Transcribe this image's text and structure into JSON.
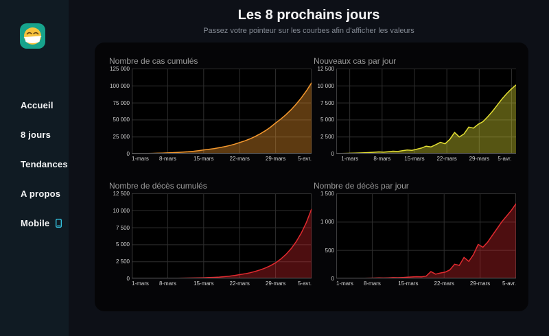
{
  "sidebar": {
    "logo": {
      "name": "face-with-mask-logo",
      "bg": "#17a38c"
    },
    "items": [
      {
        "id": "accueil",
        "label": "Accueil"
      },
      {
        "id": "8-jours",
        "label": "8 jours"
      },
      {
        "id": "tendances",
        "label": "Tendances"
      },
      {
        "id": "a-propos",
        "label": "A propos"
      },
      {
        "id": "mobile",
        "label": "Mobile",
        "icon": "phone-icon"
      }
    ]
  },
  "header": {
    "title": "Les 8 prochains jours",
    "subtitle": "Passez votre pointeur sur les courbes afin d'afficher les valeurs"
  },
  "colors": {
    "page_bg": "#0d1017",
    "sidebar_bg": "#101b23",
    "card_bg": "#050507",
    "grid": "#2f2f2f",
    "axis_x": "#6e6e6e",
    "axis_y": "#3c3c3c",
    "cases_accent": "#f5992e",
    "new_cases_accent": "#e3df33",
    "deaths_accent": "#e22a2f",
    "nav_icon_accent": "#35c3e0"
  },
  "chart_data": [
    {
      "type": "area",
      "title": "Nombre de cas cumulés",
      "color": "#f5992e",
      "fill_opacity": 0.38,
      "ymax": 125000,
      "ylim": [
        0,
        125000
      ],
      "y_ticks": [
        {
          "label": "125 000",
          "value": 125000
        },
        {
          "label": "100 000",
          "value": 100000
        },
        {
          "label": "75 000",
          "value": 75000
        },
        {
          "label": "50 000",
          "value": 50000
        },
        {
          "label": "25 000",
          "value": 25000
        },
        {
          "label": "0",
          "value": 0
        }
      ],
      "x_labels": [
        "1-mars",
        "8-mars",
        "15-mars",
        "22-mars",
        "29-mars",
        "5-avr."
      ],
      "x_positions": [
        0.0,
        0.2,
        0.4,
        0.6,
        0.8,
        1.0
      ],
      "values": [
        130,
        177,
        241,
        327,
        445,
        606,
        824,
        1130,
        1413,
        1766,
        2208,
        2760,
        3450,
        4313,
        5400,
        6318,
        7392,
        8649,
        10119,
        11839,
        13852,
        16200,
        18742,
        21683,
        25085,
        29021,
        33575,
        38843,
        45000,
        50715,
        57156,
        64415,
        72596,
        81816,
        92207,
        104000
      ]
    },
    {
      "type": "area",
      "title": "Nouveaux cas par jour",
      "color": "#e3df33",
      "fill_opacity": 0.38,
      "ymax": 12500,
      "ylim": [
        0,
        12500
      ],
      "y_ticks": [
        {
          "label": "12 500",
          "value": 12500
        },
        {
          "label": "10 000",
          "value": 10000
        },
        {
          "label": "7 500",
          "value": 7500
        },
        {
          "label": "5 000",
          "value": 5000
        },
        {
          "label": "2 500",
          "value": 2500
        },
        {
          "label": "0",
          "value": 0
        }
      ],
      "x_labels": [
        "1-mars",
        "8-mars",
        "15-mars",
        "22-mars",
        "29-mars",
        "5-avr."
      ],
      "x_positions": [
        0.075,
        0.255,
        0.435,
        0.615,
        0.795,
        0.975
      ],
      "values": [
        20,
        30,
        45,
        60,
        80,
        100,
        130,
        165,
        205,
        250,
        210,
        280,
        350,
        310,
        420,
        530,
        480,
        650,
        820,
        1100,
        980,
        1300,
        1650,
        1450,
        2100,
        3100,
        2450,
        2900,
        3900,
        3750,
        4300,
        4700,
        5400,
        6200,
        7100,
        8000,
        8800,
        9500,
        10100
      ]
    },
    {
      "type": "area",
      "title": "Nombre de décès cumulés",
      "color": "#e22a2f",
      "fill_opacity": 0.34,
      "ymax": 12500,
      "ylim": [
        0,
        12500
      ],
      "y_ticks": [
        {
          "label": "12 500",
          "value": 12500
        },
        {
          "label": "10 000",
          "value": 10000
        },
        {
          "label": "7 500",
          "value": 7500
        },
        {
          "label": "5 000",
          "value": 5000
        },
        {
          "label": "2 500",
          "value": 2500
        },
        {
          "label": "0",
          "value": 0
        }
      ],
      "x_labels": [
        "1-mars",
        "8-mars",
        "15-mars",
        "22-mars",
        "29-mars",
        "5-avr."
      ],
      "x_positions": [
        0.0,
        0.2,
        0.4,
        0.6,
        0.8,
        1.0
      ],
      "values": [
        5,
        6,
        8,
        9,
        11,
        14,
        17,
        20,
        25,
        31,
        38,
        47,
        59,
        73,
        90,
        116,
        151,
        195,
        252,
        327,
        423,
        550,
        675,
        828,
        1016,
        1246,
        1529,
        1875,
        2300,
        2845,
        3519,
        4353,
        5385,
        6661,
        8240,
        10200
      ]
    },
    {
      "type": "area",
      "title": "Nombre de décès par jour",
      "color": "#e22a2f",
      "fill_opacity": 0.34,
      "ymax": 1500,
      "ylim": [
        0,
        1500
      ],
      "y_ticks": [
        {
          "label": "1 500",
          "value": 1500
        },
        {
          "label": "1 000",
          "value": 1000
        },
        {
          "label": "500",
          "value": 500
        },
        {
          "label": "0",
          "value": 0
        }
      ],
      "x_labels": [
        "1-mars",
        "8-mars",
        "15-mars",
        "22-mars",
        "29-mars",
        "5-avr."
      ],
      "x_positions": [
        0.0,
        0.2,
        0.4,
        0.6,
        0.8,
        1.0
      ],
      "values": [
        1,
        1,
        2,
        2,
        3,
        3,
        4,
        5,
        6,
        8,
        7,
        10,
        13,
        12,
        16,
        20,
        25,
        30,
        28,
        40,
        120,
        75,
        95,
        110,
        150,
        250,
        230,
        370,
        300,
        420,
        600,
        550,
        640,
        760,
        880,
        1000,
        1100,
        1200,
        1320
      ]
    }
  ]
}
